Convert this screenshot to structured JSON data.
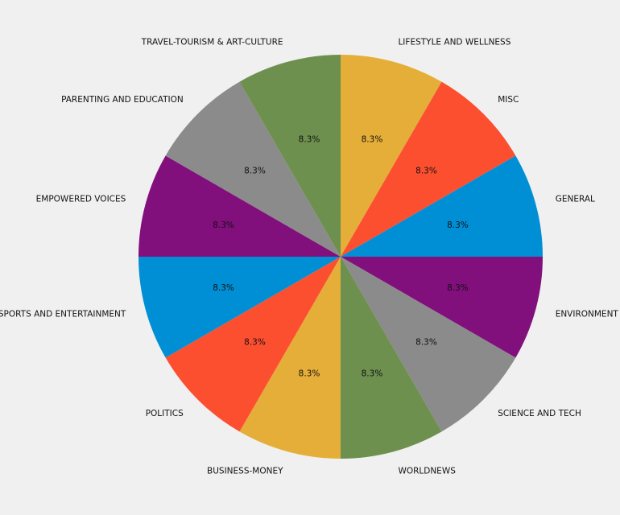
{
  "chart_data": {
    "type": "pie",
    "title": "",
    "start_angle_deg": 90,
    "direction": "clockwise",
    "legend": "none",
    "slices": [
      {
        "label": "LIFESTYLE AND WELLNESS",
        "value": 8.3,
        "pct_label": "8.3%",
        "color": "#e5ae38"
      },
      {
        "label": "MISC",
        "value": 8.3,
        "pct_label": "8.3%",
        "color": "#fc4f30"
      },
      {
        "label": "GENERAL",
        "value": 8.3,
        "pct_label": "8.3%",
        "color": "#008fd5"
      },
      {
        "label": "ENVIRONMENT",
        "value": 8.3,
        "pct_label": "8.3%",
        "color": "#810f7c"
      },
      {
        "label": "SCIENCE AND TECH",
        "value": 8.3,
        "pct_label": "8.3%",
        "color": "#8b8b8b"
      },
      {
        "label": "WORLDNEWS",
        "value": 8.3,
        "pct_label": "8.3%",
        "color": "#6d904f"
      },
      {
        "label": "BUSINESS-MONEY",
        "value": 8.3,
        "pct_label": "8.3%",
        "color": "#e5ae38"
      },
      {
        "label": "POLITICS",
        "value": 8.3,
        "pct_label": "8.3%",
        "color": "#fc4f30"
      },
      {
        "label": "SPORTS AND ENTERTAINMENT",
        "value": 8.3,
        "pct_label": "8.3%",
        "color": "#008fd5"
      },
      {
        "label": "EMPOWERED VOICES",
        "value": 8.3,
        "pct_label": "8.3%",
        "color": "#810f7c"
      },
      {
        "label": "PARENTING AND EDUCATION",
        "value": 8.3,
        "pct_label": "8.3%",
        "color": "#8b8b8b"
      },
      {
        "label": "TRAVEL-TOURISM & ART-CULTURE",
        "value": 8.3,
        "pct_label": "8.3%",
        "color": "#6d904f"
      }
    ]
  }
}
